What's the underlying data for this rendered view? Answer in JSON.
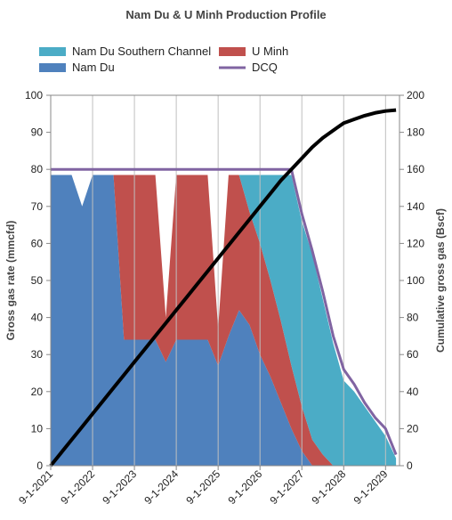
{
  "chart_data": {
    "type": "area",
    "title": "Nam Du & U Minh Production Profile",
    "y_label": "Gross gas rate (mmcfd)",
    "y2_label": "Cumulative gross gas (Bscf)",
    "x": [
      "9-1-2021",
      "12-1-2021",
      "3-1-2022",
      "6-1-2022",
      "9-1-2022",
      "12-1-2022",
      "3-1-2023",
      "6-1-2023",
      "9-1-2023",
      "12-1-2023",
      "3-1-2024",
      "6-1-2024",
      "9-1-2024",
      "12-1-2024",
      "3-1-2025",
      "6-1-2025",
      "9-1-2025",
      "12-1-2025",
      "3-1-2026",
      "6-1-2026",
      "9-1-2026",
      "12-1-2026",
      "3-1-2027",
      "6-1-2027",
      "9-1-2027",
      "12-1-2027",
      "3-1-2028",
      "6-1-2028",
      "9-1-2028",
      "12-1-2028",
      "3-1-2029",
      "6-1-2029",
      "9-1-2029",
      "12-1-2029"
    ],
    "series": [
      {
        "name": "Nam Du",
        "type": "area",
        "stack": true,
        "color": "#4f81bd",
        "values": [
          78.5,
          78.5,
          78.5,
          70,
          78.5,
          78.5,
          78.5,
          34,
          34,
          34,
          34,
          28,
          34,
          34,
          34,
          34,
          27,
          35,
          42,
          38,
          30,
          24,
          17,
          10,
          4,
          0,
          0,
          0,
          0,
          0,
          0,
          0,
          0,
          0
        ]
      },
      {
        "name": "U Minh",
        "type": "area",
        "stack": true,
        "color": "#c0504d",
        "values": [
          0,
          0,
          0,
          0,
          0,
          0,
          0,
          44.5,
          44.5,
          44.5,
          44.5,
          12,
          44.5,
          44.5,
          44.5,
          44.5,
          10,
          43.5,
          36.5,
          30.5,
          30,
          26,
          22,
          17,
          12,
          7,
          3,
          0,
          0,
          0,
          0,
          0,
          0,
          0
        ]
      },
      {
        "name": "Nam Du Southern Channel",
        "type": "area",
        "stack": true,
        "color": "#4bacc6",
        "values": [
          0,
          0,
          0,
          0,
          0,
          0,
          0,
          0,
          0,
          0,
          0,
          0,
          0,
          0,
          0,
          0,
          0,
          0,
          0,
          10,
          18.5,
          28.5,
          39.5,
          51.5,
          50,
          50,
          42,
          33,
          23,
          20,
          16,
          12,
          8,
          2
        ]
      },
      {
        "name": "DCQ",
        "type": "line",
        "color": "#8064a2",
        "values": [
          80,
          80,
          80,
          80,
          80,
          80,
          80,
          80,
          80,
          80,
          80,
          80,
          80,
          80,
          80,
          80,
          80,
          80,
          80,
          80,
          80,
          80,
          80,
          80,
          68,
          58,
          47,
          35,
          26,
          22,
          17,
          13,
          10,
          3
        ]
      },
      {
        "type": "line",
        "axis": "y2",
        "color": "#000000",
        "values": [
          0,
          7,
          14,
          21,
          28,
          35,
          42,
          49,
          56,
          63,
          70,
          77,
          84,
          91,
          98,
          105,
          112,
          119,
          126,
          133,
          140,
          147,
          154,
          160,
          166,
          172,
          177,
          181,
          185,
          187,
          189,
          190.5,
          191.5,
          192
        ]
      }
    ],
    "xlim": [
      "9-1-2021",
      "1-1-2030"
    ],
    "xticks": [
      "9-1-2021",
      "9-1-2022",
      "9-1-2023",
      "9-1-2024",
      "9-1-2025",
      "9-1-2026",
      "9-1-2027",
      "9-1-2028",
      "9-1-2029"
    ],
    "ylim": [
      0,
      100
    ],
    "yticks": [
      0,
      10,
      20,
      30,
      40,
      50,
      60,
      70,
      80,
      90,
      100
    ],
    "y2lim": [
      0,
      200
    ],
    "y2ticks": [
      0,
      20,
      40,
      60,
      80,
      100,
      120,
      140,
      160,
      180,
      200
    ],
    "grid": "x"
  }
}
